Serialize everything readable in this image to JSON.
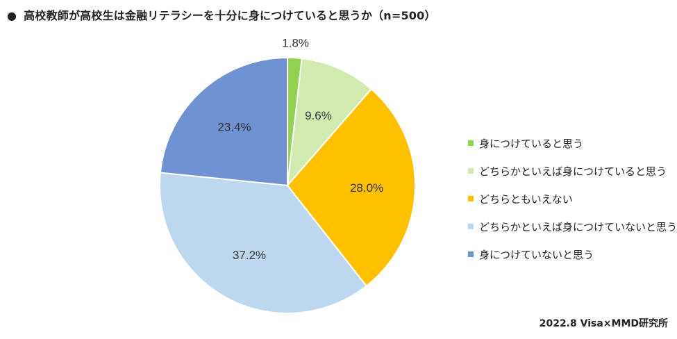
{
  "title": {
    "bullet": "●",
    "text": "高校教師が高校生は金融リテラシーを十分に身につけていると思うか（n=500）"
  },
  "source": "2022.8 Visa×MMD研究所",
  "chart_data": {
    "type": "pie",
    "title": "高校教師が高校生は金融リテラシーを十分に身につけていると思うか（n=500）",
    "legend_position": "right",
    "slices": [
      {
        "label": "身につけていると思う",
        "value": 1.8,
        "display": "1.8%",
        "color": "#92d050"
      },
      {
        "label": "どちらかといえば身につけていると思う",
        "value": 9.6,
        "display": "9.6%",
        "color": "#d1eab0"
      },
      {
        "label": "どちらともいえない",
        "value": 28.0,
        "display": "28.0%",
        "color": "#ffc000"
      },
      {
        "label": "どちらかといえば身につけていないと思う",
        "value": 37.2,
        "display": "37.2%",
        "color": "#bdd7ee"
      },
      {
        "label": "身につけていないと思う",
        "value": 23.4,
        "display": "23.4%",
        "color": "#7092d2"
      }
    ]
  }
}
